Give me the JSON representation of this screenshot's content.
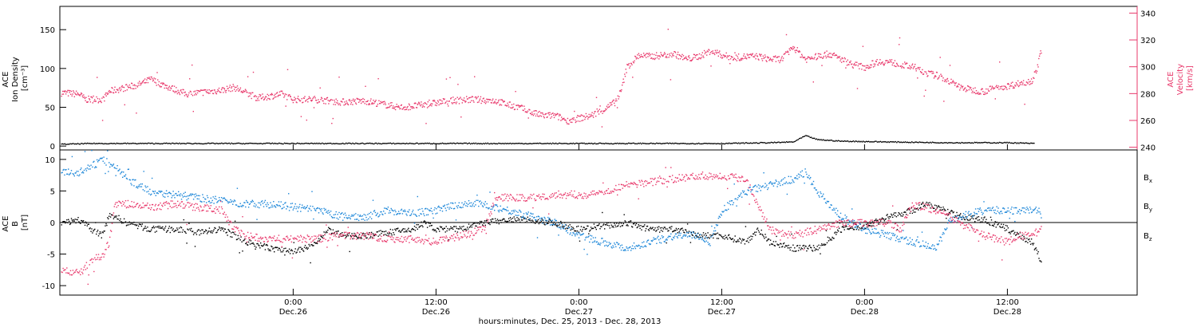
{
  "colors": {
    "black": "#000000",
    "pink": "#e8386b",
    "blue": "#1a85d8"
  },
  "footer_label": "hours:minutes, Dec. 25, 2013 - Dec. 28, 2013",
  "chart_data": [
    {
      "type": "scatter",
      "panel": "top",
      "ylabel": [
        "ACE",
        "Ion Density",
        "[cm⁻³]"
      ],
      "ylabel_right": [
        "ACE",
        "Velocity",
        "[km/s]"
      ],
      "ylim": [
        -5,
        180
      ],
      "ylim_right": [
        238,
        345
      ],
      "yticks": [
        0,
        50,
        100,
        150
      ],
      "yticks_right": [
        240,
        260,
        280,
        300,
        320,
        340
      ],
      "xlim_hours": [
        -19.6,
        70.9
      ],
      "xticks": [
        {
          "h": 0,
          "time": "0:00",
          "date": "Dec.26"
        },
        {
          "h": 12,
          "time": "12:00",
          "date": "Dec.26"
        },
        {
          "h": 24,
          "time": "0:00",
          "date": "Dec.27"
        },
        {
          "h": 36,
          "time": "12:00",
          "date": "Dec.27"
        },
        {
          "h": 48,
          "time": "0:00",
          "date": "Dec.28"
        },
        {
          "h": 60,
          "time": "12:00",
          "date": "Dec.28"
        }
      ],
      "series": [
        {
          "key": "density",
          "axis": "left",
          "color": "#000000",
          "points": [
            [
              -19.5,
              3
            ],
            [
              -17,
              4
            ],
            [
              -15,
              4
            ],
            [
              -10,
              4
            ],
            [
              -5,
              4
            ],
            [
              0,
              4
            ],
            [
              6,
              4
            ],
            [
              12,
              4
            ],
            [
              18,
              4
            ],
            [
              24,
              4
            ],
            [
              30,
              4
            ],
            [
              36,
              4
            ],
            [
              40,
              5
            ],
            [
              42,
              6
            ],
            [
              43,
              14
            ],
            [
              44,
              9
            ],
            [
              46,
              7
            ],
            [
              50,
              6
            ],
            [
              55,
              5
            ],
            [
              60,
              5
            ],
            [
              62.2,
              4
            ]
          ]
        },
        {
          "key": "velocity",
          "axis": "right",
          "color": "#e8386b",
          "points": [
            [
              -19.5,
              281
            ],
            [
              -18,
              280
            ],
            [
              -17.5,
              276
            ],
            [
              -16,
              276
            ],
            [
              -15.5,
              282
            ],
            [
              -13,
              287
            ],
            [
              -12,
              291
            ],
            [
              -11,
              287
            ],
            [
              -9,
              280
            ],
            [
              -7,
              282
            ],
            [
              -6,
              283
            ],
            [
              -5,
              285
            ],
            [
              -3,
              277
            ],
            [
              -1,
              280
            ],
            [
              0,
              276
            ],
            [
              2,
              276
            ],
            [
              4,
              274
            ],
            [
              6,
              275
            ],
            [
              9,
              270
            ],
            [
              11,
              272
            ],
            [
              13,
              275
            ],
            [
              15,
              276
            ],
            [
              17,
              275
            ],
            [
              18,
              272
            ],
            [
              19,
              270
            ],
            [
              20,
              266
            ],
            [
              21,
              264
            ],
            [
              22,
              264
            ],
            [
              23,
              260
            ],
            [
              24,
              262
            ],
            [
              25,
              264
            ],
            [
              26,
              268
            ],
            [
              27,
              274
            ],
            [
              27.5,
              282
            ],
            [
              28,
              300
            ],
            [
              29,
              309
            ],
            [
              30,
              308
            ],
            [
              31,
              309
            ],
            [
              32,
              310
            ],
            [
              33,
              306
            ],
            [
              34,
              308
            ],
            [
              35,
              312
            ],
            [
              36,
              309
            ],
            [
              37,
              307
            ],
            [
              38,
              308
            ],
            [
              39,
              308
            ],
            [
              40,
              306
            ],
            [
              41,
              306
            ],
            [
              42,
              315
            ],
            [
              43,
              306
            ],
            [
              44,
              308
            ],
            [
              45,
              310
            ],
            [
              46,
              306
            ],
            [
              47,
              302
            ],
            [
              48,
              300
            ],
            [
              49,
              304
            ],
            [
              50,
              304
            ],
            [
              51,
              302
            ],
            [
              52,
              300
            ],
            [
              53,
              296
            ],
            [
              54,
              294
            ],
            [
              55,
              290
            ],
            [
              56,
              285
            ],
            [
              57,
              283
            ],
            [
              58,
              282
            ],
            [
              59,
              285
            ],
            [
              60,
              286
            ],
            [
              61,
              288
            ],
            [
              62,
              290
            ],
            [
              62.5,
              300
            ],
            [
              62.8,
              313
            ]
          ]
        }
      ]
    },
    {
      "type": "scatter",
      "panel": "bottom",
      "ylabel": [
        "ACE",
        "B",
        "[nT]"
      ],
      "ylim": [
        -11.5,
        11.5
      ],
      "yticks": [
        -10,
        -5,
        0,
        5,
        10
      ],
      "zero_line": true,
      "legend_position": "right",
      "legend": [
        {
          "label": "B",
          "sub": "x",
          "color": "#000000"
        },
        {
          "label": "B",
          "sub": "y",
          "color": "#1a85d8"
        },
        {
          "label": "B",
          "sub": "z",
          "color": "#e8386b"
        }
      ],
      "series": [
        {
          "key": "bx",
          "color": "#000000",
          "points": [
            [
              -19.5,
              0
            ],
            [
              -18,
              0.5
            ],
            [
              -17,
              -1
            ],
            [
              -16,
              -2
            ],
            [
              -15.5,
              1.5
            ],
            [
              -14,
              0
            ],
            [
              -12,
              -1
            ],
            [
              -10,
              -1
            ],
            [
              -8,
              -1.5
            ],
            [
              -6,
              -1
            ],
            [
              -4,
              -3
            ],
            [
              -2,
              -4
            ],
            [
              0,
              -4.5
            ],
            [
              1,
              -4
            ],
            [
              2,
              -3
            ],
            [
              3,
              -1
            ],
            [
              4,
              -2
            ],
            [
              6,
              -2
            ],
            [
              8,
              -1.5
            ],
            [
              10,
              -1
            ],
            [
              11,
              0
            ],
            [
              12,
              -1
            ],
            [
              14,
              -1
            ],
            [
              16,
              0
            ],
            [
              18,
              0.5
            ],
            [
              20,
              0.5
            ],
            [
              22,
              0
            ],
            [
              24,
              -1
            ],
            [
              26,
              -0.5
            ],
            [
              28,
              0
            ],
            [
              30,
              -1
            ],
            [
              32,
              -1
            ],
            [
              34,
              -2
            ],
            [
              36,
              -2
            ],
            [
              38,
              -3
            ],
            [
              39,
              -1
            ],
            [
              40,
              -3
            ],
            [
              42,
              -4
            ],
            [
              44,
              -4
            ],
            [
              46,
              -1
            ],
            [
              48,
              -0.5
            ],
            [
              50,
              1
            ],
            [
              51,
              1.5
            ],
            [
              52,
              2
            ],
            [
              53,
              3
            ],
            [
              54,
              2.5
            ],
            [
              56,
              1
            ],
            [
              58,
              0.5
            ],
            [
              60,
              -1
            ],
            [
              61,
              -2
            ],
            [
              62,
              -3
            ],
            [
              62.8,
              -6
            ]
          ]
        },
        {
          "key": "by",
          "color": "#1a85d8",
          "points": [
            [
              -19.5,
              8
            ],
            [
              -18,
              8
            ],
            [
              -17,
              9
            ],
            [
              -16,
              10
            ],
            [
              -15,
              9
            ],
            [
              -14,
              7
            ],
            [
              -12,
              5
            ],
            [
              -10,
              4.5
            ],
            [
              -8,
              4
            ],
            [
              -6,
              3.5
            ],
            [
              -4,
              3
            ],
            [
              -2,
              3
            ],
            [
              0,
              2.5
            ],
            [
              2,
              2
            ],
            [
              4,
              1
            ],
            [
              6,
              1
            ],
            [
              8,
              2
            ],
            [
              10,
              1.5
            ],
            [
              12,
              2
            ],
            [
              14,
              3
            ],
            [
              16,
              3
            ],
            [
              18,
              2
            ],
            [
              20,
              1
            ],
            [
              22,
              0
            ],
            [
              24,
              -2
            ],
            [
              26,
              -3
            ],
            [
              28,
              -4
            ],
            [
              30,
              -3
            ],
            [
              32,
              -2
            ],
            [
              34,
              -2
            ],
            [
              35,
              -3
            ],
            [
              36,
              2
            ],
            [
              38,
              5
            ],
            [
              40,
              6
            ],
            [
              42,
              7
            ],
            [
              43,
              8
            ],
            [
              44,
              5
            ],
            [
              45,
              3
            ],
            [
              46,
              1
            ],
            [
              48,
              -1
            ],
            [
              50,
              -2
            ],
            [
              52,
              -3
            ],
            [
              54,
              -4
            ],
            [
              55,
              0
            ],
            [
              56,
              1
            ],
            [
              58,
              2
            ],
            [
              60,
              2
            ],
            [
              62,
              2
            ],
            [
              62.8,
              2
            ]
          ]
        },
        {
          "key": "bz",
          "color": "#e8386b",
          "points": [
            [
              -19.5,
              -7.5
            ],
            [
              -18,
              -8
            ],
            [
              -17,
              -6
            ],
            [
              -16,
              -5
            ],
            [
              -15.5,
              -3
            ],
            [
              -15,
              3
            ],
            [
              -14,
              3
            ],
            [
              -12,
              2.5
            ],
            [
              -10,
              3
            ],
            [
              -8,
              2.5
            ],
            [
              -6,
              2
            ],
            [
              -5,
              -1
            ],
            [
              -4,
              -2
            ],
            [
              -2,
              -2.5
            ],
            [
              0,
              -2.5
            ],
            [
              2,
              -2.5
            ],
            [
              4,
              -2
            ],
            [
              6,
              -2
            ],
            [
              8,
              -2.5
            ],
            [
              10,
              -2.5
            ],
            [
              12,
              -3
            ],
            [
              14,
              -2
            ],
            [
              16,
              -1
            ],
            [
              17,
              4
            ],
            [
              18,
              4
            ],
            [
              20,
              4
            ],
            [
              22,
              4.5
            ],
            [
              24,
              4.5
            ],
            [
              25,
              4.5
            ],
            [
              26,
              5
            ],
            [
              28,
              6
            ],
            [
              30,
              6.5
            ],
            [
              32,
              7
            ],
            [
              34,
              7.5
            ],
            [
              36,
              7.5
            ],
            [
              38,
              7
            ],
            [
              40,
              -1
            ],
            [
              42,
              -2
            ],
            [
              44,
              -1
            ],
            [
              46,
              0
            ],
            [
              48,
              0
            ],
            [
              50,
              0
            ],
            [
              51,
              -1
            ],
            [
              52,
              3
            ],
            [
              54,
              2
            ],
            [
              56,
              0
            ],
            [
              58,
              -2
            ],
            [
              60,
              -3
            ],
            [
              61,
              -2
            ],
            [
              62,
              -2
            ],
            [
              62.8,
              -1
            ]
          ]
        }
      ]
    }
  ]
}
